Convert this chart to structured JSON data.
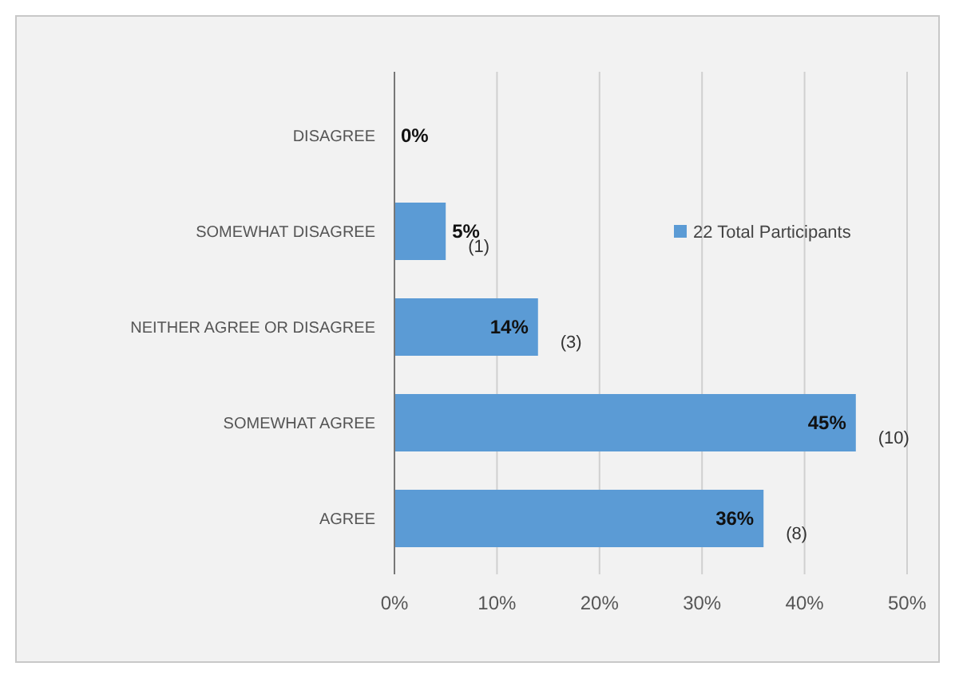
{
  "chart_data": {
    "type": "bar",
    "orientation": "horizontal",
    "categories": [
      "DISAGREE",
      "SOMEWHAT DISAGREE",
      "NEITHER AGREE OR DISAGREE",
      "SOMEWHAT AGREE",
      "AGREE"
    ],
    "series": [
      {
        "name": "22 Total Participants",
        "color": "#5b9bd5",
        "values": [
          0,
          5,
          14,
          45,
          36
        ],
        "value_labels": [
          "0%",
          "5%",
          "14%",
          "45%",
          "36%"
        ]
      }
    ],
    "xlim": [
      0,
      50
    ],
    "xticks": [
      {
        "value": 0,
        "label": "0%"
      },
      {
        "value": 10,
        "label": "10%"
      },
      {
        "value": 20,
        "label": "20%"
      },
      {
        "value": 30,
        "label": "30%"
      },
      {
        "value": 40,
        "label": "40%"
      },
      {
        "value": 50,
        "label": "50%"
      }
    ],
    "grid": "x",
    "legend": "top right",
    "annotations": [
      {
        "text": "(1)",
        "x": 5,
        "y": "SOMEWHAT DISAGREE"
      },
      {
        "text": "(3)",
        "x": 14,
        "y": "NEITHER AGREE OR DISAGREE"
      },
      {
        "text": "(10)",
        "x": 45,
        "y": "SOMEWHAT AGREE"
      },
      {
        "text": "(8)",
        "x": 36,
        "y": "AGREE"
      }
    ]
  }
}
